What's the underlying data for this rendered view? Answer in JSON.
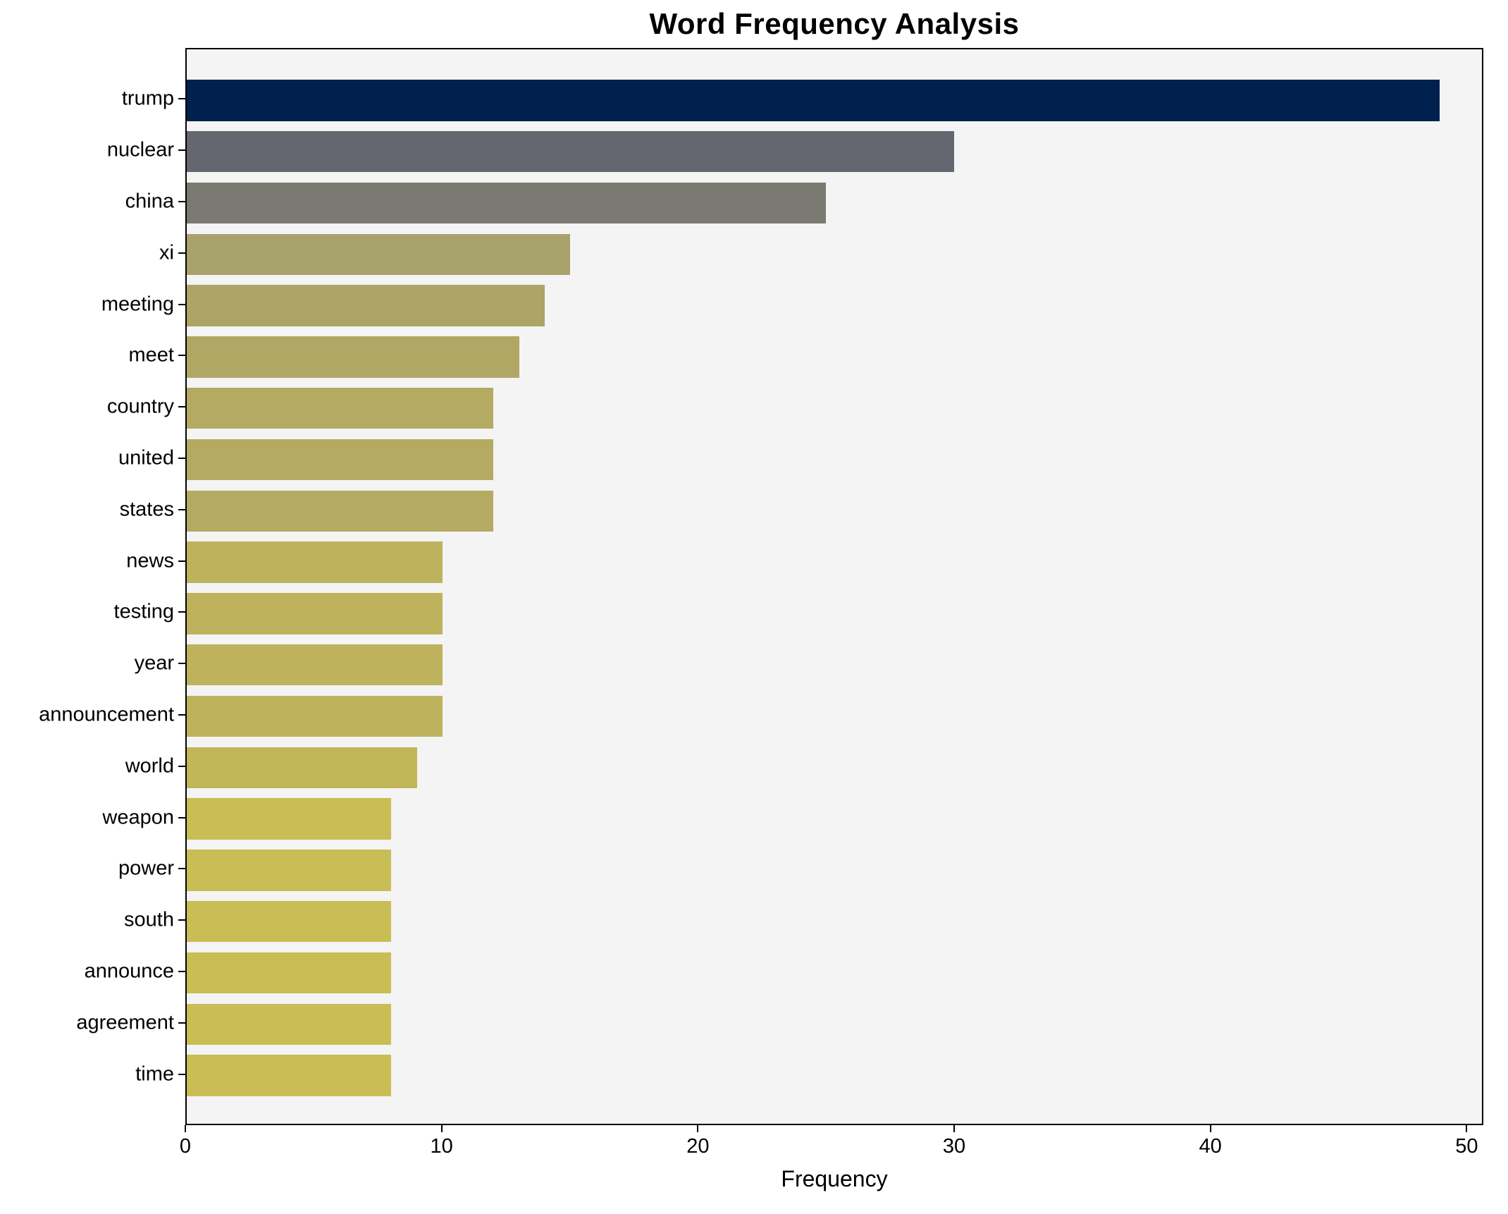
{
  "title": "Word Frequency Analysis",
  "chart_data": {
    "type": "bar",
    "orientation": "horizontal",
    "title": "Word Frequency Analysis",
    "xlabel": "Frequency",
    "ylabel": "",
    "grid": false,
    "legend": false,
    "plot_background": "#f4f4f5",
    "xlim": [
      0,
      50.65
    ],
    "x_ticks": [
      0,
      10,
      20,
      30,
      40,
      50
    ],
    "categories": [
      "trump",
      "nuclear",
      "china",
      "xi",
      "meeting",
      "meet",
      "country",
      "united",
      "states",
      "news",
      "testing",
      "year",
      "announcement",
      "world",
      "weapon",
      "power",
      "south",
      "announce",
      "agreement",
      "time"
    ],
    "values": [
      49,
      30,
      25,
      15,
      14,
      13,
      12,
      12,
      12,
      10,
      10,
      10,
      10,
      9,
      8,
      8,
      8,
      8,
      8,
      8
    ],
    "bar_colors": [
      "#00204d",
      "#64676f",
      "#7b7a72",
      "#a8a26c",
      "#ada466",
      "#b1a764",
      "#b4aa62",
      "#b4aa62",
      "#b4aa62",
      "#beb35c",
      "#beb35c",
      "#beb35c",
      "#beb35c",
      "#c2b65a",
      "#c9bd55",
      "#c9bd55",
      "#c9bd55",
      "#c9bd55",
      "#c9bd55",
      "#c9bd55"
    ]
  }
}
